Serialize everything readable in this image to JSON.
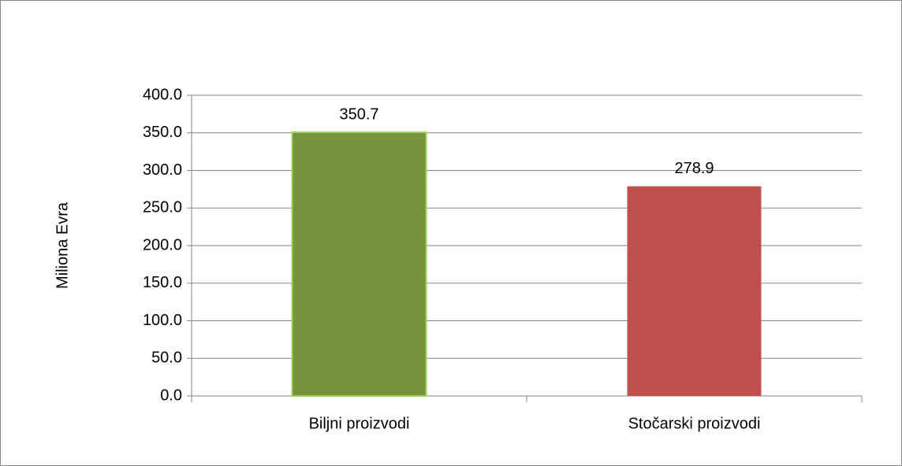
{
  "chart_data": {
    "type": "bar",
    "ylabel": "Miliona Evra",
    "categories": [
      "Biljni proizvodi",
      "Stočarski proizvodi"
    ],
    "values": [
      350.7,
      278.9
    ],
    "colors": [
      "#77933c",
      "#c0504d"
    ],
    "ylim": [
      0,
      400
    ],
    "yticks": [
      {
        "value": 0,
        "label": "0.0"
      },
      {
        "value": 50,
        "label": "50.0"
      },
      {
        "value": 100,
        "label": "100.0"
      },
      {
        "value": 150,
        "label": "150.0"
      },
      {
        "value": 200,
        "label": "200.0"
      },
      {
        "value": 250,
        "label": "250.0"
      },
      {
        "value": 300,
        "label": "300.0"
      },
      {
        "value": 350,
        "label": "350.0"
      },
      {
        "value": 400,
        "label": "400.0"
      }
    ],
    "grid": true
  }
}
